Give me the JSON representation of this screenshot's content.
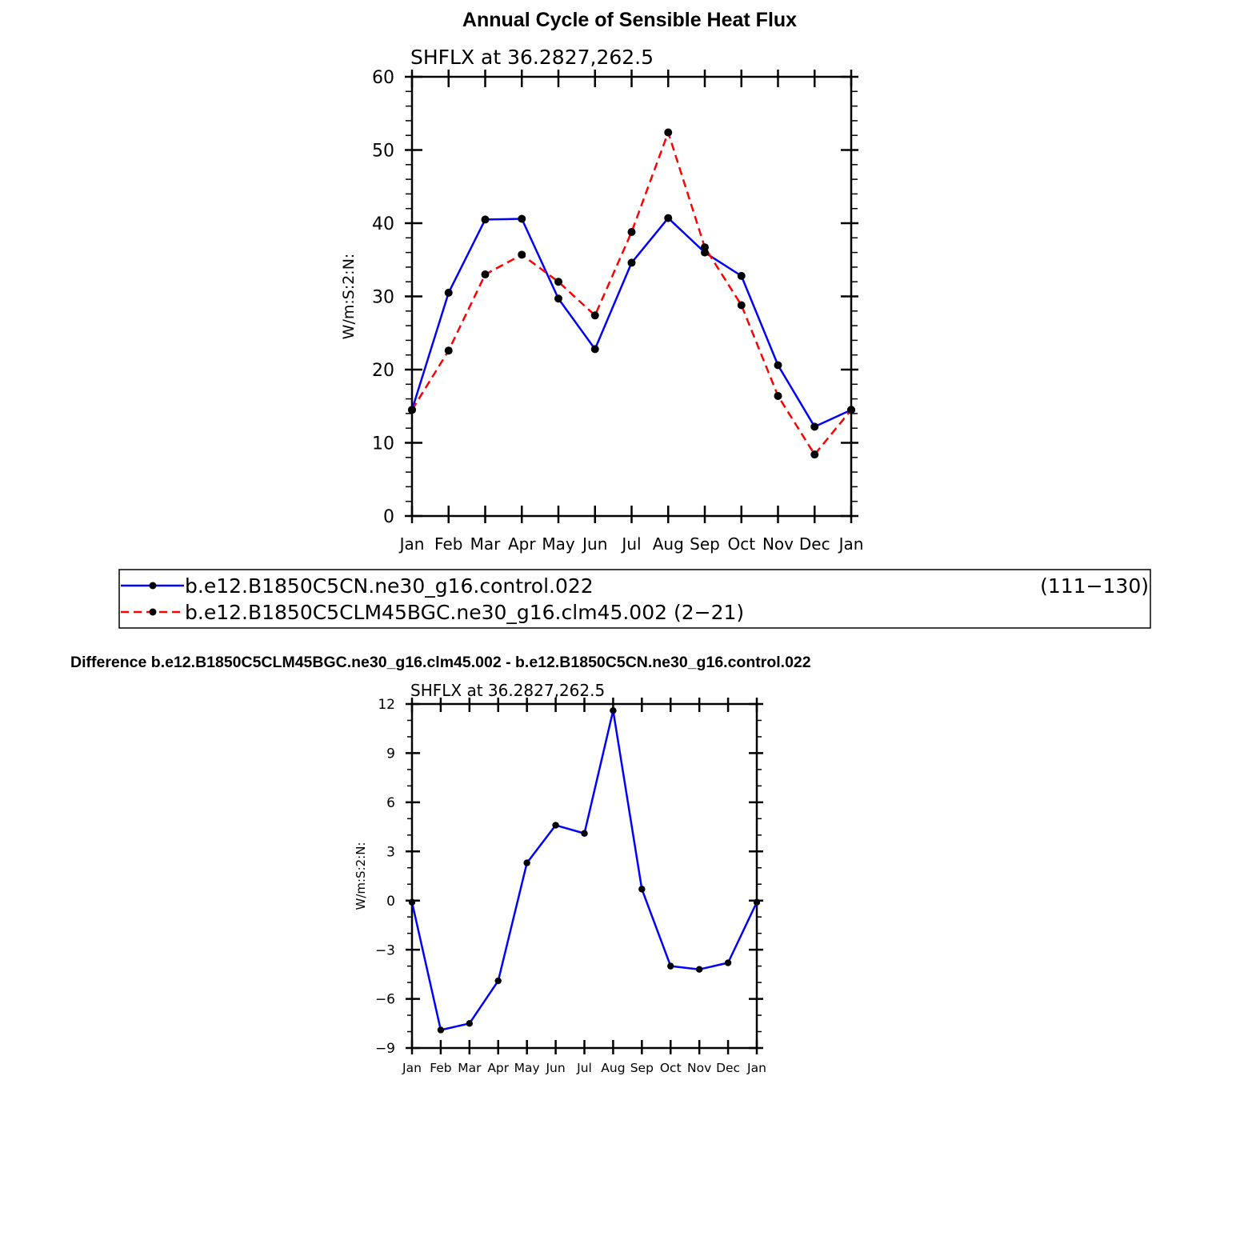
{
  "figure_title": "Annual Cycle of Sensible Heat Flux",
  "difference_title": "Difference b.e12.B1850C5CLM45BGC.ne30_g16.clm45.002 - b.e12.B1850C5CN.ne30_g16.control.022",
  "legend": {
    "entries": [
      {
        "label": "b.e12.B1850C5CN.ne30_g16.control.022",
        "years": "(111−130)",
        "color": "#0000ff",
        "dash": "solid"
      },
      {
        "label": "b.e12.B1850C5CLM45BGC.ne30_g16.clm45.002 (2−21)",
        "years": "",
        "color": "#ff0000",
        "dash": "dashed"
      }
    ]
  },
  "chart_data": [
    {
      "type": "line",
      "title": "SHFLX  at  36.2827,262.5",
      "ylabel": "W/m:S:2:N:",
      "xlabel": "",
      "categories": [
        "Jan",
        "Feb",
        "Mar",
        "Apr",
        "May",
        "Jun",
        "Jul",
        "Aug",
        "Sep",
        "Oct",
        "Nov",
        "Dec",
        "Jan"
      ],
      "ylim": [
        0,
        60
      ],
      "yticks": [
        0,
        10,
        20,
        30,
        40,
        50,
        60
      ],
      "ytick_labels": [
        "0",
        "10",
        "20",
        "30",
        "40",
        "50",
        "60"
      ],
      "series": [
        {
          "name": "b.e12.B1850C5CN.ne30_g16.control.022",
          "color": "#0000ff",
          "dash": "solid",
          "values": [
            14.5,
            30.5,
            40.5,
            40.6,
            29.7,
            22.8,
            34.6,
            40.7,
            36.0,
            32.8,
            20.6,
            12.2,
            14.5
          ]
        },
        {
          "name": "b.e12.B1850C5CLM45BGC.ne30_g16.clm45.002",
          "color": "#ff0000",
          "dash": "dashed",
          "values": [
            14.5,
            22.6,
            33.0,
            35.7,
            32.0,
            27.4,
            38.8,
            52.4,
            36.7,
            28.8,
            16.4,
            8.4,
            14.5
          ]
        }
      ]
    },
    {
      "type": "line",
      "title": "SHFLX  at  36.2827,262.5",
      "ylabel": "W/m:S:2:N:",
      "xlabel": "",
      "categories": [
        "Jan",
        "Feb",
        "Mar",
        "Apr",
        "May",
        "Jun",
        "Jul",
        "Aug",
        "Sep",
        "Oct",
        "Nov",
        "Dec",
        "Jan"
      ],
      "ylim": [
        -9,
        12
      ],
      "yticks": [
        -9,
        -6,
        -3,
        0,
        3,
        6,
        9,
        12
      ],
      "ytick_labels": [
        "−9",
        "−6",
        "−3",
        "0",
        "3",
        "6",
        "9",
        "12"
      ],
      "series": [
        {
          "name": "Difference",
          "color": "#0000ff",
          "dash": "solid",
          "values": [
            -0.1,
            -7.9,
            -7.5,
            -4.9,
            2.3,
            4.6,
            4.1,
            11.6,
            0.7,
            -4.0,
            -4.2,
            -3.8,
            -0.1
          ]
        }
      ]
    }
  ]
}
